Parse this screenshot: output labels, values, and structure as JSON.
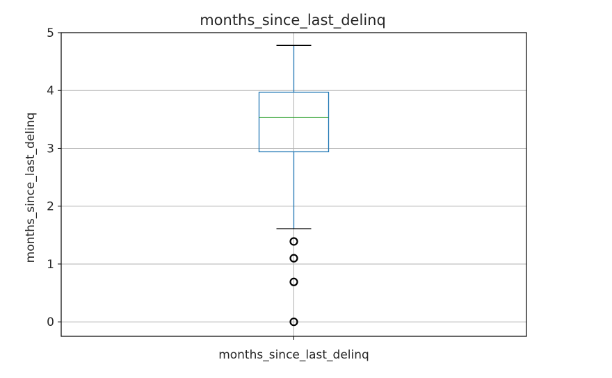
{
  "chart_data": {
    "type": "box",
    "title": "months_since_last_delinq",
    "xlabel": "",
    "ylabel": "months_since_last_delinq",
    "categories": [
      "months_since_last_delinq"
    ],
    "ylim": [
      -0.25,
      5.0
    ],
    "yticks": [
      0,
      1,
      2,
      3,
      4,
      5
    ],
    "grid": true,
    "boxes": [
      {
        "name": "months_since_last_delinq",
        "whisker_low": 1.61,
        "q1": 2.94,
        "median": 3.53,
        "q3": 3.97,
        "whisker_high": 4.78,
        "outliers": [
          1.39,
          1.1,
          0.69,
          0.0
        ]
      }
    ],
    "colors": {
      "box": "#1f77b4",
      "median": "#2ca02c",
      "whisker_cap": "#000000",
      "outlier": "#000000",
      "grid": "#b0b0b0"
    }
  }
}
